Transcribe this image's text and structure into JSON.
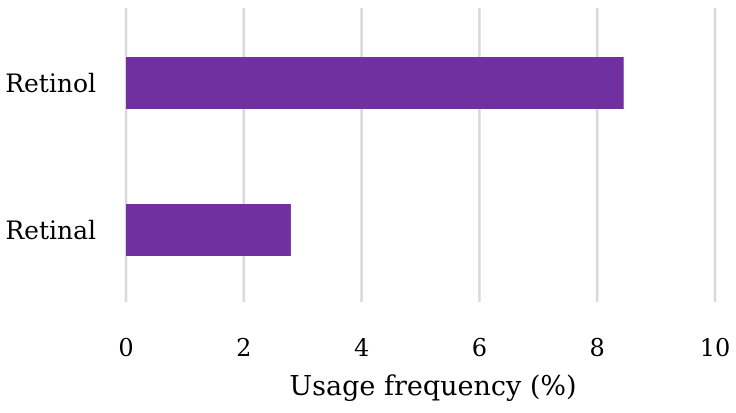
{
  "chart_data": {
    "type": "bar",
    "orientation": "horizontal",
    "categories": [
      "Retinol",
      "Retinal"
    ],
    "values": [
      8.45,
      2.8
    ],
    "title": "",
    "xlabel": "Usage frequency (%)",
    "ylabel": "",
    "xlim": [
      0,
      10
    ],
    "xticks": [
      "0",
      "2",
      "4",
      "6",
      "8",
      "10"
    ],
    "grid": "vertical",
    "bar_color": "#7030a0",
    "grid_color": "#d9d9d9"
  }
}
